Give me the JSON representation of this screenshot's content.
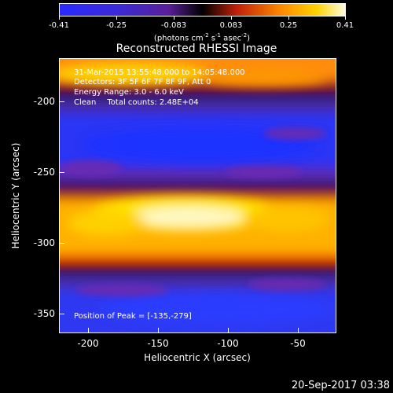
{
  "colorbar": {
    "ticks": [
      "-0.41",
      "-0.25",
      "-0.083",
      "0.083",
      "0.25",
      "0.41"
    ],
    "units_prefix": "(photons cm",
    "units_exp1": "-2",
    "units_mid1": " s",
    "units_exp2": "-1",
    "units_mid2": " asec",
    "units_exp3": "-2",
    "units_suffix": ")"
  },
  "title": "Reconstructed RHESSI Image",
  "info": {
    "time_range": "31-Mar-2015 13:55:48.000 to 14:05:48.000",
    "detectors": "Detectors: 3F 5F 6F 7F 8F 9F, Att 0",
    "energy": "Energy Range: 3.0 - 6.0 keV",
    "method": "Clean",
    "counts": "Total counts: 2.48E+04",
    "peak": "Position of Peak = [-135,-279]"
  },
  "axes": {
    "xlabel": "Heliocentric X (arcsec)",
    "ylabel": "Heliocentric Y (arcsec)",
    "xticks": [
      "-200",
      "-150",
      "-100",
      "-50"
    ],
    "yticks": [
      "-200",
      "-250",
      "-300",
      "-350"
    ]
  },
  "footer": "20-Sep-2017 03:38"
}
